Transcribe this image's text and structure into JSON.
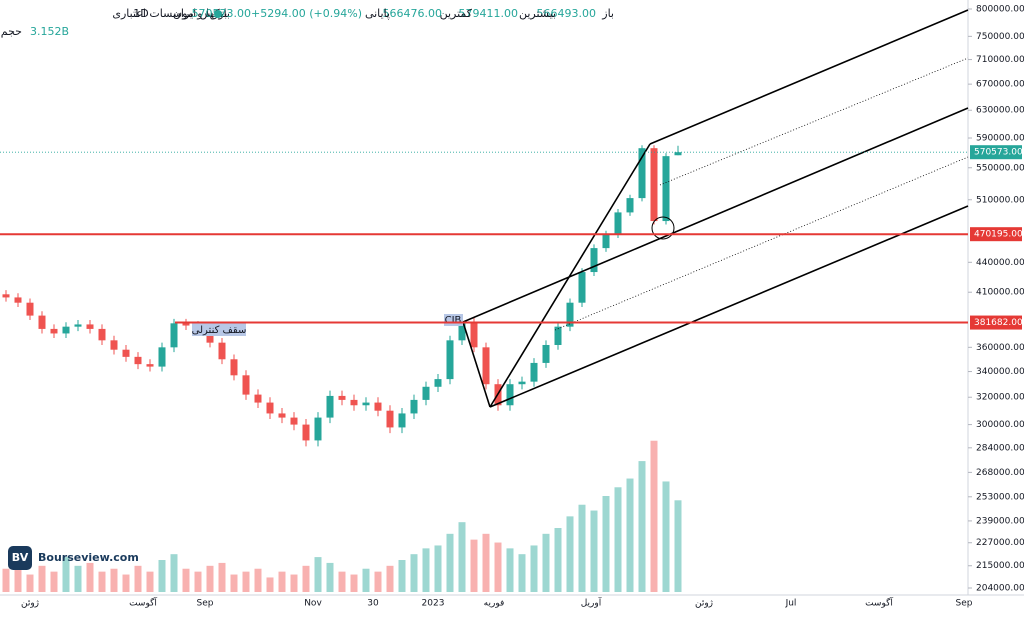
{
  "header": {
    "exchange": "بورس ایران",
    "interval": "1D",
    "symbol": "بانکها و موسسات اعتباری",
    "open_label": "باز",
    "open": "566493.00",
    "high_label": "بیشترین",
    "high": "579411.00",
    "low_label": "کمترین",
    "low": "566476.00",
    "close_label": "پایانی",
    "close": "570573.00+5294.00 (+0.94%)",
    "volume_label": "حجم",
    "volume": "3.152B"
  },
  "watermark": "Bourseview.com",
  "chart_data": {
    "type": "candlestick",
    "log_scale": true,
    "ylim": [
      204000,
      800000
    ],
    "yticks": [
      {
        "value": 800000,
        "label": "800000.00"
      },
      {
        "value": 750000,
        "label": "750000.00"
      },
      {
        "value": 710000,
        "label": "710000.00"
      },
      {
        "value": 670000,
        "label": "670000.00"
      },
      {
        "value": 630000,
        "label": "630000.00"
      },
      {
        "value": 590000,
        "label": "590000.00"
      },
      {
        "value": 550000,
        "label": "550000.00"
      },
      {
        "value": 510000,
        "label": "510000.00"
      },
      {
        "value": 440000,
        "label": "440000.00"
      },
      {
        "value": 410000,
        "label": "410000.00"
      },
      {
        "value": 360000,
        "label": "360000.00"
      },
      {
        "value": 340000,
        "label": "340000.00"
      },
      {
        "value": 320000,
        "label": "320000.00"
      },
      {
        "value": 300000,
        "label": "300000.00"
      },
      {
        "value": 284000,
        "label": "284000.00"
      },
      {
        "value": 268000,
        "label": "268000.00"
      },
      {
        "value": 253000,
        "label": "253000.00"
      },
      {
        "value": 239000,
        "label": "239000.00"
      },
      {
        "value": 227000,
        "label": "227000.00"
      },
      {
        "value": 215000,
        "label": "215000.00"
      },
      {
        "value": 204000,
        "label": "204000.00"
      }
    ],
    "x_labels": [
      "ژوئن",
      "آگوست",
      "Sep",
      "Nov",
      "30",
      "2023",
      "فوریه",
      "آوریل",
      "ژوئن",
      "Jul",
      "آگوست",
      "Sep"
    ],
    "up_color": "#26a69a",
    "down_color": "#ef5350",
    "open": [
      408000,
      405000,
      400000,
      388000,
      376000,
      372000,
      378000,
      380000,
      376000,
      366000,
      358000,
      352000,
      346000,
      344000,
      360000,
      381000,
      379000,
      374000,
      364000,
      350000,
      337000,
      322000,
      316000,
      308000,
      305000,
      300000,
      289000,
      305000,
      321000,
      318000,
      314000,
      316000,
      310000,
      298000,
      308000,
      318000,
      328000,
      334000,
      366000,
      382000,
      360000,
      330000,
      314000,
      330000,
      332000,
      347000,
      362000,
      378000,
      400000,
      430000,
      455000,
      470000,
      495000,
      512000,
      576000,
      485000,
      566493
    ],
    "high": [
      412000,
      409000,
      404000,
      392000,
      380000,
      382000,
      384000,
      384000,
      380000,
      370000,
      362000,
      356000,
      350000,
      364000,
      385000,
      385000,
      383000,
      378000,
      368000,
      354000,
      341000,
      326000,
      320000,
      312000,
      309000,
      304000,
      309000,
      325000,
      325000,
      322000,
      320000,
      320000,
      314000,
      312000,
      322000,
      332000,
      338000,
      370000,
      386000,
      386000,
      364000,
      334000,
      334000,
      336000,
      351000,
      366000,
      382000,
      404000,
      434000,
      459000,
      474000,
      499000,
      516000,
      580000,
      580000,
      569279,
      579411
    ],
    "low": [
      401000,
      396000,
      384000,
      372000,
      368000,
      368000,
      374000,
      372000,
      362000,
      354000,
      348000,
      342000,
      340000,
      340000,
      356000,
      375000,
      370000,
      360000,
      346000,
      333000,
      318000,
      312000,
      304000,
      301000,
      296000,
      285000,
      285000,
      301000,
      314000,
      310000,
      310000,
      306000,
      294000,
      294000,
      304000,
      314000,
      324000,
      330000,
      362000,
      356000,
      326000,
      310000,
      310000,
      326000,
      328000,
      343000,
      358000,
      374000,
      396000,
      426000,
      451000,
      466000,
      491000,
      508000,
      481000,
      481000,
      566476
    ],
    "close": [
      405000,
      400000,
      388000,
      376000,
      372000,
      378000,
      380000,
      376000,
      366000,
      358000,
      352000,
      346000,
      344000,
      360000,
      381000,
      379000,
      374000,
      364000,
      350000,
      337000,
      322000,
      316000,
      308000,
      305000,
      300000,
      289000,
      305000,
      321000,
      318000,
      314000,
      316000,
      310000,
      298000,
      308000,
      318000,
      328000,
      334000,
      366000,
      382000,
      360000,
      330000,
      314000,
      330000,
      332000,
      347000,
      362000,
      378000,
      400000,
      430000,
      455000,
      470000,
      495000,
      512000,
      576000,
      485000,
      565279,
      570573
    ],
    "volume": [
      800000000,
      1100000000,
      600000000,
      900000000,
      700000000,
      1200000000,
      900000000,
      1000000000,
      700000000,
      800000000,
      600000000,
      900000000,
      700000000,
      1100000000,
      1300000000,
      800000000,
      700000000,
      900000000,
      1000000000,
      600000000,
      700000000,
      800000000,
      500000000,
      700000000,
      600000000,
      900000000,
      1200000000,
      1000000000,
      700000000,
      600000000,
      800000000,
      700000000,
      900000000,
      1100000000,
      1300000000,
      1500000000,
      1600000000,
      2000000000,
      2400000000,
      1800000000,
      2000000000,
      1700000000,
      1500000000,
      1300000000,
      1600000000,
      2000000000,
      2200000000,
      2600000000,
      3000000000,
      2800000000,
      3300000000,
      3600000000,
      3900000000,
      4500000000,
      5200000000,
      3800000000,
      3152000000
    ],
    "vlim": [
      0,
      5500000000
    ],
    "levels": [
      {
        "value": 570573,
        "label": "570573.00",
        "color": "#26a69a",
        "style": "dotted"
      },
      {
        "value": 470195,
        "label": "470195.00",
        "color": "#e53935",
        "style": "solid"
      },
      {
        "value": 381682,
        "label": "381682.00",
        "color": "#e53935",
        "style": "solid"
      }
    ],
    "annotations": [
      "سقف کنترلی",
      "CIB"
    ]
  }
}
